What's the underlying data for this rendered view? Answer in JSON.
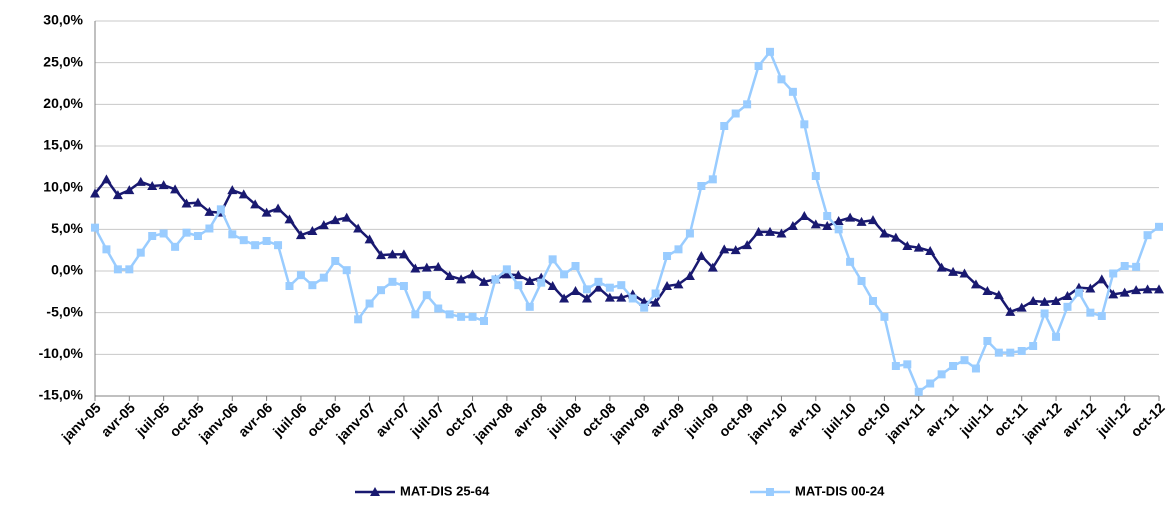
{
  "chart_data": {
    "type": "line",
    "categories": [
      "janv-05",
      null,
      null,
      "avr-05",
      null,
      null,
      "juil-05",
      null,
      null,
      "oct-05",
      null,
      null,
      "janv-06",
      null,
      null,
      "avr-06",
      null,
      null,
      "juil-06",
      null,
      null,
      "oct-06",
      null,
      null,
      "janv-07",
      null,
      null,
      "avr-07",
      null,
      null,
      "juil-07",
      null,
      null,
      "oct-07",
      null,
      null,
      "janv-08",
      null,
      null,
      "avr-08",
      null,
      null,
      "juil-08",
      null,
      null,
      "oct-08",
      null,
      null,
      "janv-09",
      null,
      null,
      "avr-09",
      null,
      null,
      "juil-09",
      null,
      null,
      "oct-09",
      null,
      null,
      "janv-10",
      null,
      null,
      "avr-10",
      null,
      null,
      "juil-10",
      null,
      null,
      "oct-10",
      null,
      null,
      "janv-11",
      null,
      null,
      "avr-11",
      null,
      null,
      "juil-11",
      null,
      null,
      "oct-11",
      null,
      null,
      "janv-12",
      null,
      null,
      "avr-12",
      null,
      null,
      "juil-12",
      null,
      null,
      "oct-12"
    ],
    "series": [
      {
        "name": "MAT-DIS 25-64",
        "color": "#191970",
        "marker": "triangle",
        "values": [
          9.3,
          11.0,
          9.1,
          9.7,
          10.7,
          10.2,
          10.3,
          9.8,
          8.1,
          8.2,
          7.1,
          7.0,
          9.7,
          9.2,
          8.0,
          7.0,
          7.5,
          6.2,
          4.3,
          4.8,
          5.5,
          6.1,
          6.4,
          5.1,
          3.8,
          1.9,
          2.0,
          2.0,
          0.3,
          0.4,
          0.5,
          -0.6,
          -1.0,
          -0.4,
          -1.3,
          -1.0,
          -0.4,
          -0.5,
          -1.2,
          -0.8,
          -1.8,
          -3.3,
          -2.4,
          -3.3,
          -2.0,
          -3.2,
          -3.2,
          -2.8,
          -3.7,
          -3.8,
          -1.8,
          -1.6,
          -0.6,
          1.8,
          0.4,
          2.6,
          2.5,
          3.1,
          4.7,
          4.7,
          4.5,
          5.4,
          6.6,
          5.6,
          5.4,
          6.0,
          6.4,
          5.9,
          6.1,
          4.5,
          4.0,
          3.0,
          2.8,
          2.4,
          0.4,
          -0.1,
          -0.3,
          -1.6,
          -2.4,
          -2.9,
          -4.9,
          -4.4,
          -3.6,
          -3.7,
          -3.6,
          -3.0,
          -2.0,
          -2.1,
          -1.0,
          -2.8,
          -2.6,
          -2.3,
          -2.2,
          -2.2
        ]
      },
      {
        "name": "MAT-DIS 00-24",
        "color": "#99ccff",
        "marker": "square",
        "values": [
          5.2,
          2.6,
          0.2,
          0.2,
          2.2,
          4.2,
          4.5,
          2.9,
          4.6,
          4.2,
          5.1,
          7.4,
          4.4,
          3.7,
          3.1,
          3.6,
          3.1,
          -1.8,
          -0.5,
          -1.7,
          -0.8,
          1.2,
          0.1,
          -5.8,
          -3.9,
          -2.3,
          -1.3,
          -1.8,
          -5.2,
          -2.9,
          -4.5,
          -5.2,
          -5.5,
          -5.5,
          -6.0,
          -1.0,
          0.2,
          -1.7,
          -4.3,
          -1.4,
          1.4,
          -0.4,
          0.6,
          -2.2,
          -1.3,
          -2.0,
          -1.7,
          -3.3,
          -4.4,
          -2.7,
          1.8,
          2.6,
          4.5,
          10.2,
          11.0,
          17.4,
          18.9,
          20.0,
          24.6,
          26.3,
          23.0,
          21.5,
          17.6,
          11.4,
          6.6,
          5.0,
          1.1,
          -1.2,
          -3.6,
          -5.5,
          -11.4,
          -11.2,
          -14.5,
          -13.5,
          -12.4,
          -11.4,
          -10.7,
          -11.7,
          -8.4,
          -9.8,
          -9.8,
          -9.6,
          -9.0,
          -5.1,
          -7.9,
          -4.3,
          -2.6,
          -5.0,
          -5.4,
          -0.3,
          0.6,
          0.5,
          4.3,
          5.3
        ]
      }
    ],
    "ylim": [
      -15,
      30
    ],
    "yticks": [
      {
        "value": -15,
        "label": "-15,0%"
      },
      {
        "value": -10,
        "label": "-10,0%"
      },
      {
        "value": -5,
        "label": "-5,0%"
      },
      {
        "value": 0,
        "label": "0,0%"
      },
      {
        "value": 5,
        "label": "5,0%"
      },
      {
        "value": 10,
        "label": "10,0%"
      },
      {
        "value": 15,
        "label": "15,0%"
      },
      {
        "value": 20,
        "label": "20,0%"
      },
      {
        "value": 25,
        "label": "25,0%"
      },
      {
        "value": 30,
        "label": "30,0%"
      }
    ],
    "grid": true,
    "legend": "bottom"
  }
}
